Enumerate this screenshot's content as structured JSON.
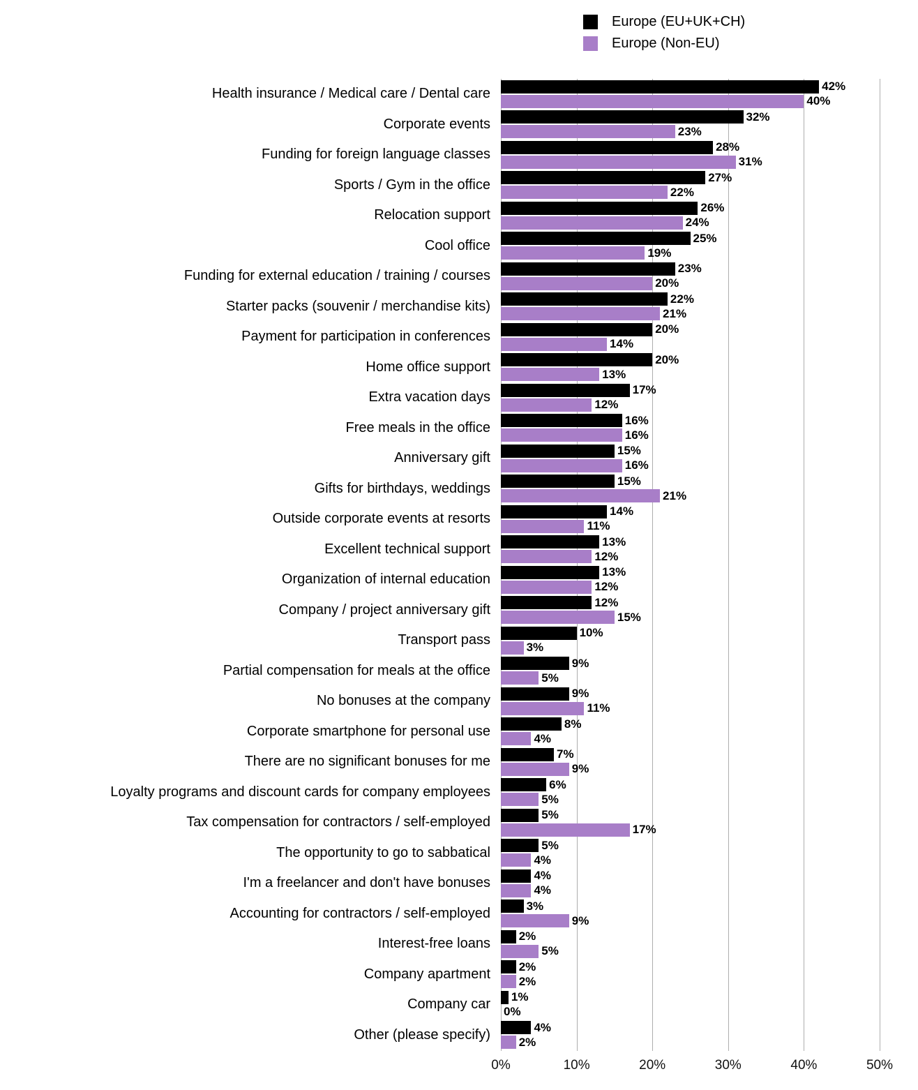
{
  "legend": {
    "items": [
      {
        "label": "Europe (EU+UK+CH)",
        "color": "#000000"
      },
      {
        "label": "Europe (Non-EU)",
        "color": "#a87ec8"
      }
    ]
  },
  "chart_data": {
    "type": "bar",
    "orientation": "horizontal",
    "title": "",
    "xlabel": "",
    "ylabel": "",
    "xlim": [
      0,
      50
    ],
    "x_ticks": [
      "0%",
      "10%",
      "20%",
      "30%",
      "40%",
      "50%"
    ],
    "grid": "vertical",
    "legend_position": "top-right",
    "grid_color": "#aeaeae",
    "categories": [
      "Health insurance / Medical care / Dental care",
      "Corporate events",
      "Funding for foreign language classes",
      "Sports / Gym in the office",
      "Relocation support",
      "Cool office",
      "Funding for external education / training / courses",
      "Starter packs (souvenir / merchandise kits)",
      "Payment for participation in conferences",
      "Home office support",
      "Extra vacation days",
      "Free meals in the office",
      "Anniversary gift",
      "Gifts for birthdays, weddings",
      "Outside corporate events at resorts",
      "Excellent technical support",
      "Organization of internal education",
      "Company / project anniversary gift",
      "Transport pass",
      "Partial compensation for meals at the office",
      "No bonuses at the company",
      "Corporate smartphone for personal use",
      "There are no significant bonuses for me",
      "Loyalty programs and discount cards for company employees",
      "Tax compensation for contractors / self-employed",
      "The opportunity to go to sabbatical",
      "I'm a freelancer and don't have bonuses",
      "Accounting for contractors / self-employed",
      "Interest-free loans",
      "Company apartment",
      "Company car",
      "Other (please specify)"
    ],
    "series": [
      {
        "name": "Europe (EU+UK+CH)",
        "color": "#000000",
        "values": [
          42,
          32,
          28,
          27,
          26,
          25,
          23,
          22,
          20,
          20,
          17,
          16,
          15,
          15,
          14,
          13,
          13,
          12,
          10,
          9,
          9,
          8,
          7,
          6,
          5,
          5,
          4,
          3,
          2,
          2,
          1,
          4
        ],
        "labels": [
          "42%",
          "32%",
          "28%",
          "27%",
          "26%",
          "25%",
          "23%",
          "22%",
          "20%",
          "20%",
          "17%",
          "16%",
          "15%",
          "15%",
          "14%",
          "13%",
          "13%",
          "12%",
          "10%",
          "9%",
          "9%",
          "8%",
          "7%",
          "6%",
          "5%",
          "5%",
          "4%",
          "3%",
          "2%",
          "2%",
          "1%",
          "4%"
        ]
      },
      {
        "name": "Europe (Non-EU)",
        "color": "#a87ec8",
        "values": [
          40,
          23,
          31,
          22,
          24,
          19,
          20,
          21,
          14,
          13,
          12,
          16,
          16,
          21,
          11,
          12,
          12,
          15,
          3,
          5,
          11,
          4,
          9,
          5,
          17,
          4,
          4,
          9,
          5,
          2,
          0,
          2
        ],
        "labels": [
          "40%",
          "23%",
          "31%",
          "22%",
          "24%",
          "19%",
          "20%",
          "21%",
          "14%",
          "13%",
          "12%",
          "16%",
          "16%",
          "21%",
          "11%",
          "12%",
          "12%",
          "15%",
          "3%",
          "5%",
          "11%",
          "4%",
          "9%",
          "5%",
          "17%",
          "4%",
          "4%",
          "9%",
          "5%",
          "2%",
          "0%",
          "2%"
        ]
      }
    ]
  }
}
